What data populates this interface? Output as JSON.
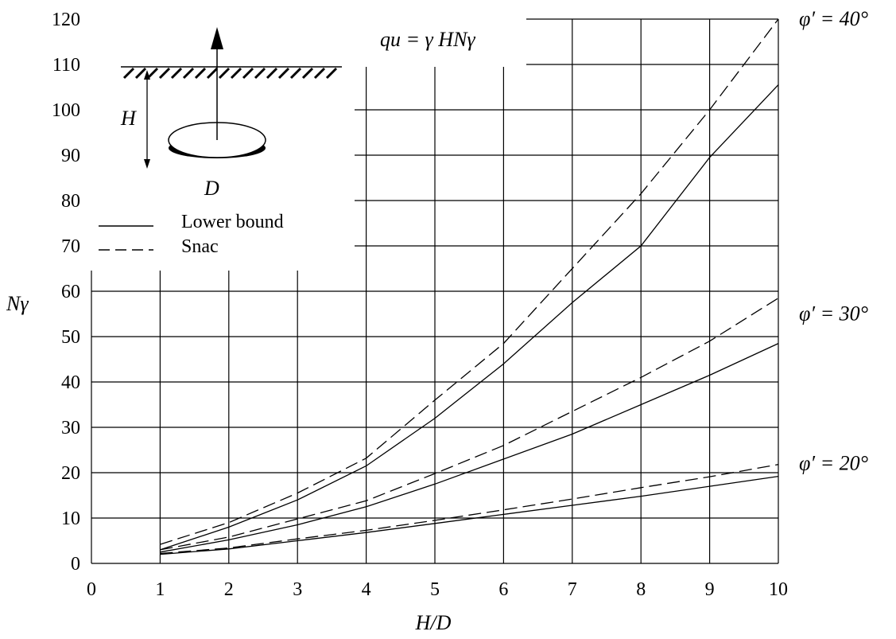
{
  "chart_data": {
    "type": "line",
    "xlabel": "H/D",
    "ylabel": "Nγ",
    "formula": "qu = γ HNγ",
    "xlim": [
      0,
      10
    ],
    "ylim": [
      0,
      120
    ],
    "xticks": [
      "0",
      "1",
      "2",
      "3",
      "4",
      "5",
      "6",
      "7",
      "8",
      "9",
      "10"
    ],
    "yticks": [
      "0",
      "10",
      "20",
      "30",
      "40",
      "50",
      "60",
      "70",
      "80",
      "90",
      "100",
      "110",
      "120"
    ],
    "grid": true,
    "legend_position": "top-left",
    "legend": [
      {
        "label": "Lower bound",
        "style": "solid"
      },
      {
        "label": "Snac",
        "style": "dashed"
      }
    ],
    "inset": {
      "H_label": "H",
      "D_label": "D"
    },
    "series": [
      {
        "name": "φ′ = 40°",
        "group": "40",
        "style": "solid",
        "x": [
          1,
          2,
          3,
          4,
          5,
          6,
          7,
          8,
          9,
          10
        ],
        "y": [
          3,
          8,
          14,
          21.5,
          32,
          44,
          57.5,
          70,
          89.5,
          105.5
        ]
      },
      {
        "name": "φ′ = 40°",
        "group": "40",
        "style": "dashed",
        "x": [
          1,
          2,
          3,
          4,
          5,
          6,
          7,
          8,
          9,
          10
        ],
        "y": [
          4.2,
          9,
          15.5,
          23.2,
          36,
          48.5,
          65,
          81.5,
          100,
          120
        ]
      },
      {
        "name": "φ′ = 30°",
        "group": "30",
        "style": "solid",
        "x": [
          1,
          2,
          3,
          4,
          5,
          6,
          7,
          8,
          9,
          10
        ],
        "y": [
          2.5,
          5.2,
          8.5,
          12.5,
          17.5,
          23,
          28.5,
          35,
          41.5,
          48.5
        ]
      },
      {
        "name": "φ′ = 30°",
        "group": "30",
        "style": "dashed",
        "x": [
          1,
          2,
          3,
          4,
          5,
          6,
          7,
          8,
          9,
          10
        ],
        "y": [
          3,
          5.8,
          9.8,
          13.8,
          19.8,
          26,
          33.5,
          41,
          49,
          58.5
        ]
      },
      {
        "name": "φ′ = 20°",
        "group": "20",
        "style": "solid",
        "x": [
          1,
          2,
          3,
          4,
          5,
          6,
          7,
          8,
          9,
          10
        ],
        "y": [
          2,
          3.2,
          5,
          6.8,
          8.8,
          10.8,
          12.8,
          14.8,
          17,
          19.2
        ]
      },
      {
        "name": "φ′ = 20°",
        "group": "20",
        "style": "dashed",
        "x": [
          1,
          2,
          3,
          4,
          5,
          6,
          7,
          8,
          9,
          10
        ],
        "y": [
          2.2,
          3.4,
          5.4,
          7.3,
          9.5,
          11.8,
          14.2,
          16.7,
          19.1,
          21.8
        ]
      }
    ],
    "curve_labels": [
      {
        "text": "φ′ = 40°",
        "y": 120
      },
      {
        "text": "φ′ = 30°",
        "y": 55
      },
      {
        "text": "φ′ = 20°",
        "y": 22
      }
    ]
  }
}
